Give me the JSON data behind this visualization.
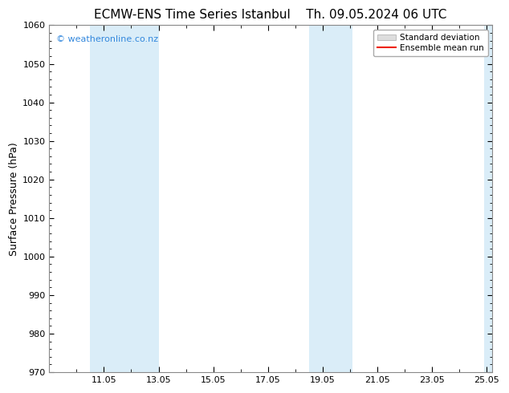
{
  "title_left": "ECMW-ENS Time Series Istanbul",
  "title_right": "Th. 09.05.2024 06 UTC",
  "ylabel": "Surface Pressure (hPa)",
  "ylim": [
    970,
    1060
  ],
  "yticks": [
    970,
    980,
    990,
    1000,
    1010,
    1020,
    1030,
    1040,
    1050,
    1060
  ],
  "xlim": [
    9.0,
    25.2
  ],
  "xtick_labels": [
    "11.05",
    "13.05",
    "15.05",
    "17.05",
    "19.05",
    "21.05",
    "23.05",
    "25.05"
  ],
  "xtick_positions": [
    11,
    13,
    15,
    17,
    19,
    21,
    23,
    25
  ],
  "shade_bands": [
    {
      "x_start": 10.5,
      "x_end": 13.0
    },
    {
      "x_start": 18.5,
      "x_end": 20.1
    },
    {
      "x_start": 24.9,
      "x_end": 25.3
    }
  ],
  "shade_color": "#daedf8",
  "background_color": "#ffffff",
  "watermark_text": "© weatheronline.co.nz",
  "watermark_color": "#3388dd",
  "legend_sd_color": "#dddddd",
  "legend_mean_color": "#ee2200",
  "title_fontsize": 11,
  "axis_label_fontsize": 9,
  "tick_fontsize": 8,
  "watermark_fontsize": 8,
  "spine_color": "#888888"
}
